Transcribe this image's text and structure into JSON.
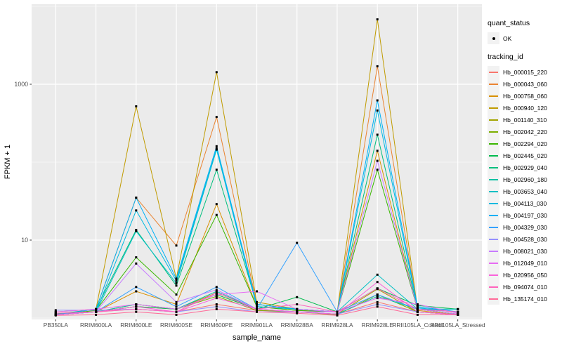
{
  "chart_data": {
    "type": "line",
    "xlabel": "sample_name",
    "ylabel": "FPKM + 1",
    "y_scale": "log10",
    "y_major_ticks": [
      {
        "label": "10",
        "value": 10
      },
      {
        "label": "1000",
        "value": 1000
      }
    ],
    "y_minor_ticks": [
      1,
      100,
      10000
    ],
    "grid": true,
    "panel_bg": "#EBEBEB",
    "grid_color": "#FFFFFF",
    "tick_text_color": "#4D4D4D",
    "point_color": "#000000",
    "categories": [
      "PB350LA",
      "RRIM600LA",
      "RRIM600LE",
      "RRIM600SE",
      "RRIM600PE",
      "RRIM901LA",
      "RRIM928BA",
      "RRIM928LA",
      "RRIM928LE",
      "RRII105LA_Control",
      "RRII105LA_Stressed"
    ],
    "series": [
      {
        "name": "Hb_000015_220",
        "color": "#F8766D",
        "values": [
          1.15,
          1.2,
          1.3,
          1.2,
          1.5,
          1.25,
          1.2,
          1.12,
          1.6,
          1.2,
          1.1
        ]
      },
      {
        "name": "Hb_000043_060",
        "color": "#EA8331",
        "values": [
          1.1,
          1.3,
          35,
          8.5,
          380,
          1.5,
          1.3,
          1.2,
          1700,
          1.3,
          1.12
        ]
      },
      {
        "name": "Hb_000758_060",
        "color": "#D89000",
        "values": [
          1.1,
          1.2,
          2.2,
          1.5,
          29,
          1.4,
          1.25,
          1.2,
          140,
          1.25,
          1.1
        ]
      },
      {
        "name": "Hb_000940_120",
        "color": "#C09B00",
        "values": [
          1.2,
          1.3,
          520,
          3.2,
          1430,
          1.6,
          1.3,
          1.2,
          6800,
          1.3,
          1.12
        ]
      },
      {
        "name": "Hb_001140_310",
        "color": "#A3A500",
        "values": [
          1.1,
          1.2,
          1.5,
          1.3,
          2.1,
          1.3,
          1.2,
          1.12,
          2.35,
          1.2,
          1.1
        ]
      },
      {
        "name": "Hb_002042_220",
        "color": "#7CAE00",
        "values": [
          1.1,
          1.2,
          1.4,
          1.3,
          1.9,
          1.25,
          1.2,
          1.1,
          2.0,
          1.2,
          1.1
        ]
      },
      {
        "name": "Hb_002294_020",
        "color": "#39B600",
        "values": [
          1.1,
          1.25,
          6,
          2.0,
          21,
          1.4,
          1.25,
          1.2,
          80,
          1.3,
          1.12
        ]
      },
      {
        "name": "Hb_002445_020",
        "color": "#00BB4E",
        "values": [
          1.1,
          1.2,
          1.4,
          1.3,
          2.0,
          1.3,
          1.85,
          1.2,
          2.4,
          1.45,
          1.3
        ]
      },
      {
        "name": "Hb_002929_040",
        "color": "#00BF7D",
        "values": [
          1.12,
          1.3,
          13.5,
          2.6,
          80,
          1.5,
          1.3,
          1.2,
          225,
          1.3,
          1.2
        ]
      },
      {
        "name": "Hb_002960_180",
        "color": "#00C1A3",
        "values": [
          1.1,
          1.2,
          1.5,
          1.3,
          2.2,
          1.3,
          1.2,
          1.12,
          1.9,
          1.3,
          1.3
        ]
      },
      {
        "name": "Hb_003653_040",
        "color": "#00BFC4",
        "values": [
          1.1,
          1.2,
          13,
          2.8,
          145,
          1.4,
          1.3,
          1.2,
          3.6,
          1.3,
          1.3
        ]
      },
      {
        "name": "Hb_004113_030",
        "color": "#00BAE0",
        "values": [
          1.1,
          1.2,
          24,
          3.0,
          150,
          1.4,
          1.3,
          1.2,
          460,
          1.35,
          1.2
        ]
      },
      {
        "name": "Hb_004197_030",
        "color": "#00B0F6",
        "values": [
          1.1,
          1.3,
          35,
          3.2,
          160,
          1.5,
          1.3,
          1.2,
          620,
          1.4,
          1.2
        ]
      },
      {
        "name": "Hb_004329_030",
        "color": "#35A2FF",
        "values": [
          1.1,
          1.2,
          2.5,
          1.4,
          2.5,
          1.3,
          9.2,
          1.2,
          2.0,
          1.3,
          1.2
        ]
      },
      {
        "name": "Hb_004528_030",
        "color": "#9590FF",
        "values": [
          1.26,
          1.26,
          1.3,
          1.2,
          1.4,
          1.2,
          1.2,
          1.12,
          1.5,
          1.2,
          1.1
        ]
      },
      {
        "name": "Hb_008021_030",
        "color": "#C77CFF",
        "values": [
          1.1,
          1.2,
          5,
          1.6,
          2.3,
          1.3,
          1.2,
          1.2,
          104,
          1.3,
          1.12
        ]
      },
      {
        "name": "Hb_012049_010",
        "color": "#E76BF3",
        "values": [
          1.2,
          1.3,
          1.5,
          1.3,
          2.0,
          2.2,
          1.3,
          1.2,
          1.8,
          1.5,
          1.15
        ]
      },
      {
        "name": "Hb_020956_050",
        "color": "#FA62DB",
        "values": [
          1.1,
          1.2,
          1.4,
          1.2,
          1.8,
          1.3,
          1.2,
          1.12,
          2.9,
          1.2,
          1.1
        ]
      },
      {
        "name": "Hb_094074_010",
        "color": "#FF62BC",
        "values": [
          1.15,
          1.2,
          1.3,
          1.2,
          2.1,
          1.3,
          1.5,
          1.2,
          2.4,
          1.3,
          1.2
        ]
      },
      {
        "name": "Hb_135174_010",
        "color": "#FF6A98",
        "values": [
          1.08,
          1.1,
          1.2,
          1.1,
          1.3,
          1.2,
          1.15,
          1.08,
          1.4,
          1.1,
          1.1
        ]
      }
    ]
  },
  "legend": {
    "quant_status_title": "quant_status",
    "quant_status_items": [
      "OK"
    ],
    "tracking_id_title": "tracking_id"
  }
}
